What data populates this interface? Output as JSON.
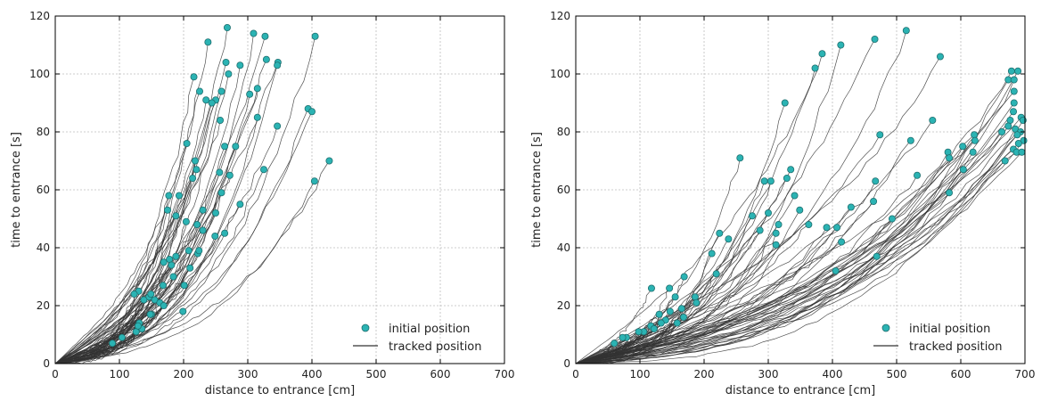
{
  "chart_data": [
    {
      "type": "scatter",
      "xlabel": "distance to entrance [cm]",
      "ylabel": "time to entrance [s]",
      "xlim": [
        0,
        700
      ],
      "ylim": [
        0,
        120
      ],
      "xticks": [
        0,
        100,
        200,
        300,
        400,
        500,
        600,
        700
      ],
      "yticks": [
        0,
        20,
        40,
        60,
        80,
        100,
        120
      ],
      "grid": true,
      "legend_position": "bottom-right",
      "colors": {
        "initial": "#2bb3b3",
        "tracked": "#333333"
      },
      "series": [
        {
          "name": "initial position",
          "kind": "marker",
          "points": [
            [
              268,
              116
            ],
            [
              309,
              114
            ],
            [
              238,
              111
            ],
            [
              327,
              113
            ],
            [
              405,
              113
            ],
            [
              288,
              103
            ],
            [
              329,
              105
            ],
            [
              347,
              104
            ],
            [
              266,
              104
            ],
            [
              346,
              103
            ],
            [
              270,
              100
            ],
            [
              216,
              99
            ],
            [
              315,
              95
            ],
            [
              259,
              94
            ],
            [
              225,
              94
            ],
            [
              235,
              91
            ],
            [
              303,
              93
            ],
            [
              250,
              91
            ],
            [
              244,
              90
            ],
            [
              394,
              88
            ],
            [
              400,
              87
            ],
            [
              257,
              84
            ],
            [
              315,
              85
            ],
            [
              346,
              82
            ],
            [
              205,
              76
            ],
            [
              281,
              75
            ],
            [
              264,
              75
            ],
            [
              218,
              70
            ],
            [
              427,
              70
            ],
            [
              220,
              67
            ],
            [
              256,
              66
            ],
            [
              325,
              67
            ],
            [
              214,
              64
            ],
            [
              272,
              65
            ],
            [
              404,
              63
            ],
            [
              259,
              59
            ],
            [
              193,
              58
            ],
            [
              177,
              58
            ],
            [
              288,
              55
            ],
            [
              250,
              52
            ],
            [
              230,
              53
            ],
            [
              188,
              51
            ],
            [
              175,
              53
            ],
            [
              204,
              49
            ],
            [
              221,
              48
            ],
            [
              264,
              45
            ],
            [
              230,
              46
            ],
            [
              249,
              44
            ],
            [
              222,
              38
            ],
            [
              208,
              39
            ],
            [
              224,
              39
            ],
            [
              178,
              36
            ],
            [
              188,
              37
            ],
            [
              169,
              35
            ],
            [
              181,
              34
            ],
            [
              184,
              30
            ],
            [
              210,
              33
            ],
            [
              201,
              27
            ],
            [
              168,
              27
            ],
            [
              130,
              25
            ],
            [
              146,
              23
            ],
            [
              155,
              22
            ],
            [
              149,
              24
            ],
            [
              123,
              24
            ],
            [
              163,
              21
            ],
            [
              138,
              22
            ],
            [
              169,
              20
            ],
            [
              150,
              17
            ],
            [
              148,
              17
            ],
            [
              199,
              18
            ],
            [
              131,
              14
            ],
            [
              135,
              12
            ],
            [
              126,
              11
            ],
            [
              129,
              13
            ],
            [
              104,
              9
            ],
            [
              89,
              7
            ]
          ]
        },
        {
          "name": "tracked position",
          "kind": "line"
        }
      ]
    },
    {
      "type": "scatter",
      "xlabel": "distance to entrance [cm]",
      "ylabel": "time to entrance [s]",
      "xlim": [
        0,
        700
      ],
      "ylim": [
        0,
        120
      ],
      "xticks": [
        0,
        100,
        200,
        300,
        400,
        500,
        600,
        700
      ],
      "yticks": [
        0,
        20,
        40,
        60,
        80,
        100,
        120
      ],
      "grid": true,
      "legend_position": "bottom-right",
      "colors": {
        "initial": "#2bb3b3",
        "tracked": "#333333"
      },
      "series": [
        {
          "name": "initial position",
          "kind": "marker",
          "points": [
            [
              515,
              115
            ],
            [
              413,
              110
            ],
            [
              466,
              112
            ],
            [
              384,
              107
            ],
            [
              373,
              102
            ],
            [
              568,
              106
            ],
            [
              326,
              90
            ],
            [
              679,
              101
            ],
            [
              689,
              101
            ],
            [
              674,
              98
            ],
            [
              683,
              98
            ],
            [
              683,
              94
            ],
            [
              683,
              90
            ],
            [
              682,
              87
            ],
            [
              685,
              81
            ],
            [
              694,
              85
            ],
            [
              697,
              84
            ],
            [
              677,
              84
            ],
            [
              674,
              82
            ],
            [
              693,
              80
            ],
            [
              698,
              77
            ],
            [
              664,
              80
            ],
            [
              688,
              79
            ],
            [
              690,
              76
            ],
            [
              682,
              74
            ],
            [
              687,
              73
            ],
            [
              695,
              73
            ],
            [
              669,
              70
            ],
            [
              621,
              79
            ],
            [
              619,
              73
            ],
            [
              603,
              75
            ],
            [
              622,
              77
            ],
            [
              556,
              84
            ],
            [
              474,
              79
            ],
            [
              522,
              77
            ],
            [
              580,
              73
            ],
            [
              582,
              71
            ],
            [
              604,
              67
            ],
            [
              582,
              59
            ],
            [
              532,
              65
            ],
            [
              467,
              63
            ],
            [
              256,
              71
            ],
            [
              335,
              67
            ],
            [
              329,
              64
            ],
            [
              294,
              63
            ],
            [
              304,
              63
            ],
            [
              341,
              58
            ],
            [
              300,
              52
            ],
            [
              275,
              51
            ],
            [
              238,
              43
            ],
            [
              287,
              46
            ],
            [
              312,
              45
            ],
            [
              316,
              48
            ],
            [
              349,
              53
            ],
            [
              429,
              54
            ],
            [
              464,
              56
            ],
            [
              493,
              50
            ],
            [
              407,
              47
            ],
            [
              363,
              48
            ],
            [
              391,
              47
            ],
            [
              312,
              41
            ],
            [
              414,
              42
            ],
            [
              469,
              37
            ],
            [
              405,
              32
            ],
            [
              212,
              38
            ],
            [
              224,
              45
            ],
            [
              219,
              31
            ],
            [
              169,
              30
            ],
            [
              146,
              26
            ],
            [
              155,
              23
            ],
            [
              118,
              26
            ],
            [
              186,
              23
            ],
            [
              188,
              21
            ],
            [
              165,
              19
            ],
            [
              168,
              16
            ],
            [
              130,
              17
            ],
            [
              147,
              18
            ],
            [
              158,
              14
            ],
            [
              140,
              15
            ],
            [
              133,
              14
            ],
            [
              117,
              13
            ],
            [
              106,
              11
            ],
            [
              122,
              12
            ],
            [
              98,
              11
            ],
            [
              79,
              9
            ],
            [
              73,
              9
            ],
            [
              60,
              7
            ]
          ]
        },
        {
          "name": "tracked position",
          "kind": "line"
        }
      ]
    }
  ]
}
